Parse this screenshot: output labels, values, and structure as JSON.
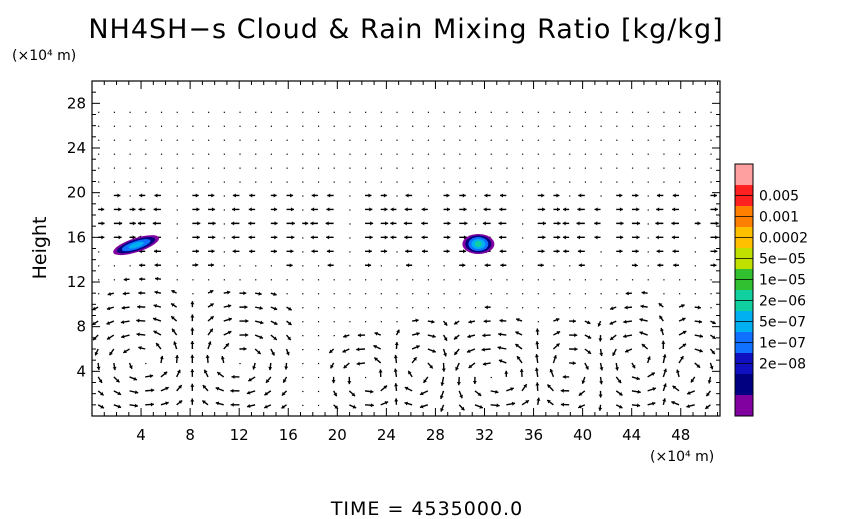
{
  "chart_data": {
    "type": "contour-vector",
    "title": "NH4SH−s Cloud & Rain Mixing Ratio [kg/kg]",
    "ylabel": "Height",
    "y_unit": "(×10⁴ m)",
    "x_unit": "(×10⁴ m)",
    "x_ticks": [
      "4",
      "8",
      "12",
      "16",
      "20",
      "24",
      "28",
      "32",
      "36",
      "40",
      "44",
      "48"
    ],
    "y_ticks": [
      "4",
      "8",
      "12",
      "16",
      "20",
      "24",
      "28"
    ],
    "xlim": [
      0,
      51.2
    ],
    "ylim": [
      0,
      30
    ],
    "colorbar": {
      "labels": [
        "0.005",
        "0.001",
        "0.0002",
        "5e−05",
        "1e−05",
        "2e−06",
        "5e−07",
        "1e−07",
        "2e−08"
      ],
      "colors": [
        "#ffa0a0",
        "#ff2020",
        "#ff8000",
        "#ffc000",
        "#c0e000",
        "#30c030",
        "#10d0a0",
        "#00b0f0",
        "#1070ff",
        "#1010c0",
        "#000080",
        "#8000a0"
      ]
    },
    "cloud_regions": [
      {
        "x_center": 3.6,
        "y_center": 15.3,
        "approx_max": "2e−06"
      },
      {
        "x_center": 31.5,
        "y_center": 15.4,
        "approx_max": "5e−06"
      }
    ],
    "time_label": "TIME  =  4535000.0"
  }
}
